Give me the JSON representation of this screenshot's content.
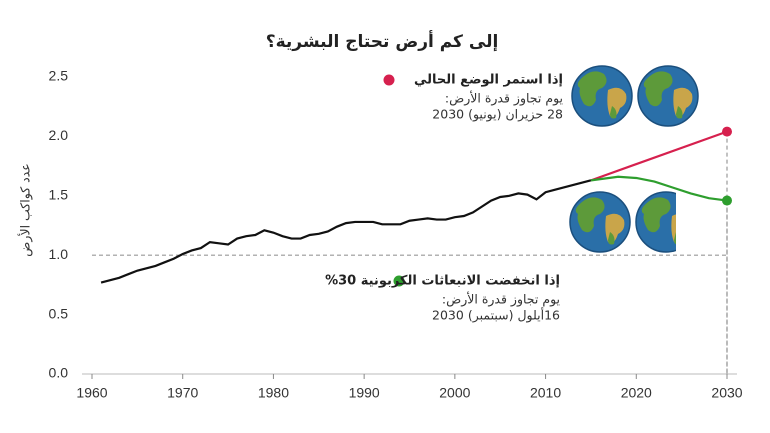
{
  "chart_data": {
    "type": "line",
    "title": "إلى كم أرض تحتاج البشرية؟",
    "y_label": "عدد كواكب الأرض",
    "xlim": [
      1960,
      2030
    ],
    "xticks": [
      1960,
      1970,
      1980,
      1990,
      2000,
      2010,
      2020,
      2030
    ],
    "ylim": [
      0,
      2.5
    ],
    "yticks": [
      {
        "value": 0,
        "label": "0.0"
      },
      0.5,
      {
        "value": 1,
        "label": "1.0"
      },
      1.5,
      {
        "value": 2,
        "label": "2.0"
      },
      2.5
    ],
    "reference_line": 1,
    "series": [
      {
        "color": "#111111",
        "x": [
          1961,
          1962,
          1963,
          1964,
          1965,
          1966,
          1967,
          1968,
          1969,
          1970,
          1971,
          1972,
          1973,
          1974,
          1975,
          1976,
          1977,
          1978,
          1979,
          1980,
          1981,
          1982,
          1983,
          1984,
          1985,
          1986,
          1987,
          1988,
          1989,
          1990,
          1991,
          1992,
          1993,
          1994,
          1995,
          1996,
          1997,
          1998,
          1999,
          2000,
          2001,
          2002,
          2003,
          2004,
          2005,
          2006,
          2007,
          2008,
          2009,
          2010,
          2011,
          2012,
          2013,
          2014,
          2015
        ],
        "values": [
          0.77,
          0.79,
          0.81,
          0.84,
          0.87,
          0.89,
          0.91,
          0.94,
          0.97,
          1.01,
          1.04,
          1.06,
          1.11,
          1.1,
          1.09,
          1.14,
          1.16,
          1.17,
          1.21,
          1.19,
          1.16,
          1.14,
          1.14,
          1.17,
          1.18,
          1.2,
          1.24,
          1.27,
          1.28,
          1.28,
          1.28,
          1.26,
          1.26,
          1.26,
          1.29,
          1.3,
          1.31,
          1.3,
          1.3,
          1.32,
          1.33,
          1.36,
          1.41,
          1.46,
          1.49,
          1.5,
          1.52,
          1.51,
          1.47,
          1.53,
          1.55,
          1.57,
          1.59,
          1.61,
          1.63
        ]
      },
      {
        "name": "إذا استمر الوضع الحالي",
        "color": "#d6204e",
        "x": [
          2015,
          2030
        ],
        "values": [
          1.63,
          2.04
        ],
        "notes": [
          "يوم تجاوز قدرة الأرض:",
          "28 حزيران (يونيو) 2030"
        ]
      },
      {
        "name": "إذا انخفضت الانبعاثات الكربونية 30%",
        "color": "#2e9e2e",
        "x": [
          2015,
          2018,
          2020,
          2022,
          2024,
          2026,
          2028,
          2030
        ],
        "values": [
          1.63,
          1.66,
          1.65,
          1.62,
          1.57,
          1.52,
          1.48,
          1.46
        ],
        "notes": [
          "يوم تجاوز قدرة الأرض:",
          "16أيلول (سبتمبر) 2030"
        ]
      }
    ]
  }
}
